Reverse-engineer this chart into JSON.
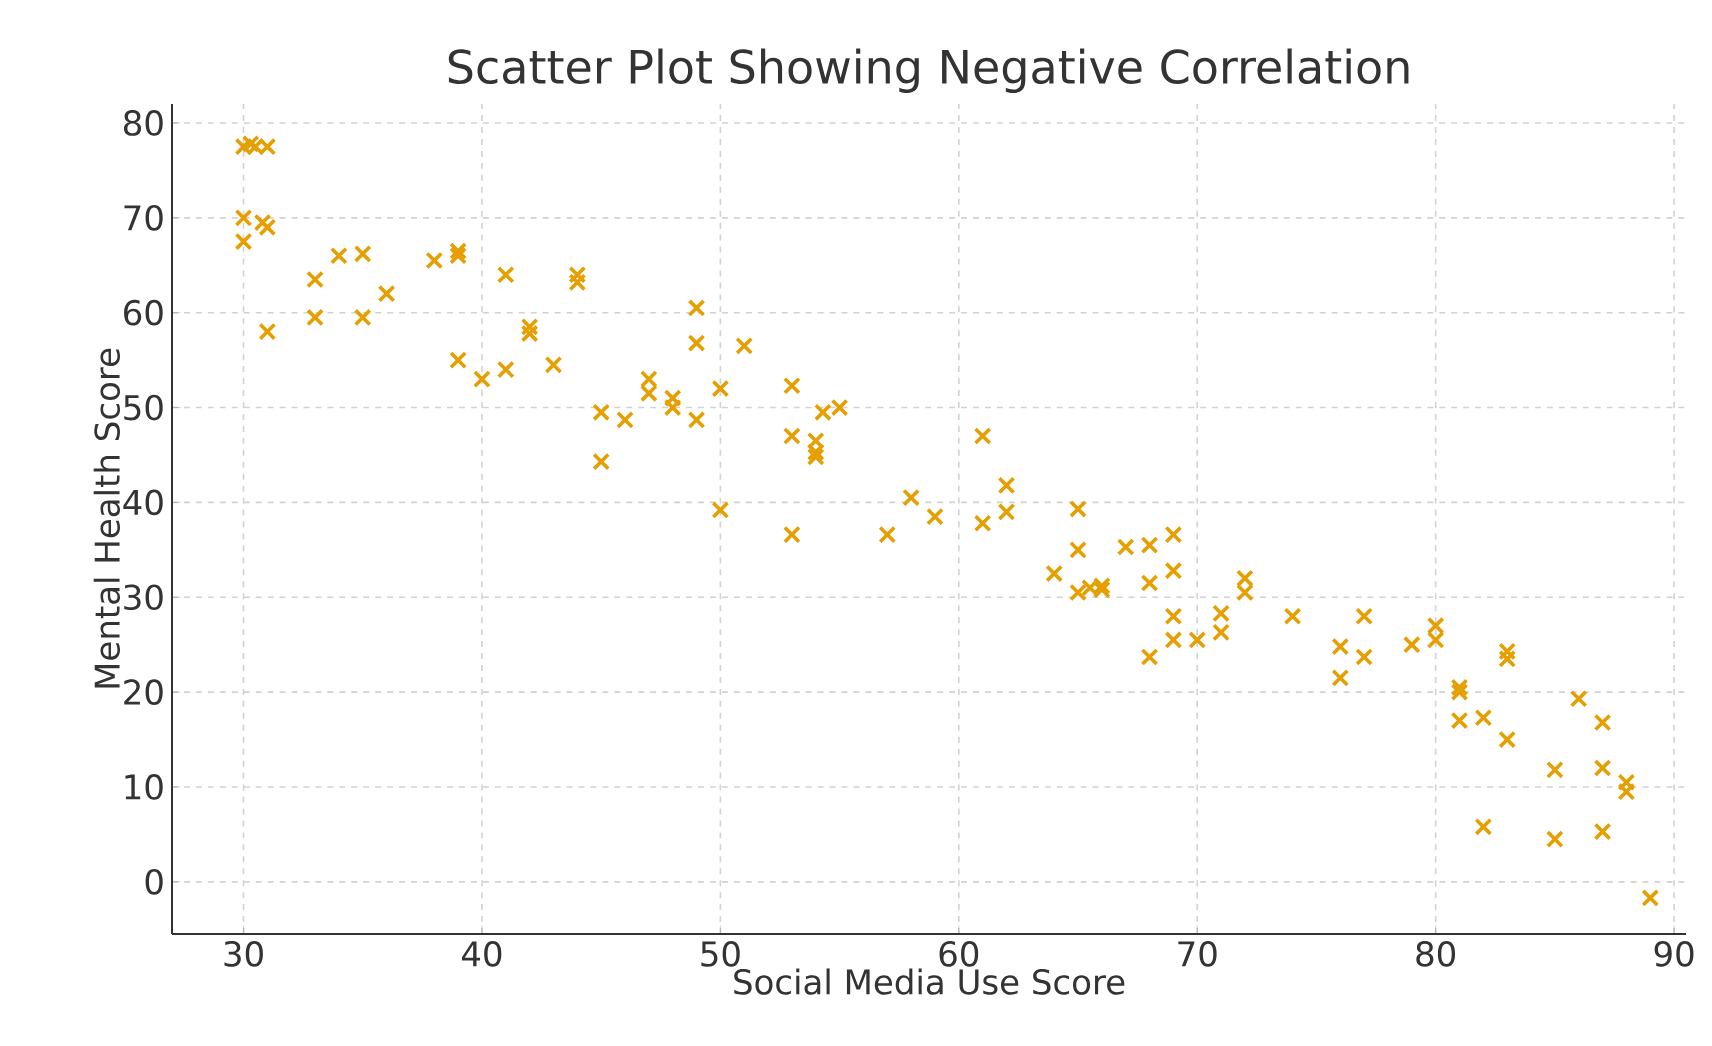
{
  "chart_data": {
    "type": "scatter",
    "title": "Scatter Plot Showing Negative Correlation",
    "xlabel": "Social Media Use Score",
    "ylabel": "Mental Health Score",
    "xlim": [
      27,
      90.5
    ],
    "ylim": [
      -5.5,
      82
    ],
    "xticks": [
      30,
      40,
      50,
      60,
      70,
      80,
      90
    ],
    "yticks": [
      0,
      10,
      20,
      30,
      40,
      50,
      60,
      70,
      80
    ],
    "grid": true,
    "marker": "cross",
    "series": [
      {
        "color": "#e69f00",
        "x": [
          30,
          30.3,
          30.5,
          31,
          30,
          30,
          30.8,
          31,
          31,
          33,
          33,
          34,
          35,
          35,
          36,
          38,
          39,
          39,
          39,
          40,
          41,
          41,
          42,
          42,
          43,
          44,
          44,
          45,
          45,
          46,
          47,
          47,
          48,
          48,
          49,
          49,
          49,
          50,
          50,
          51,
          53,
          53,
          53,
          54,
          54,
          54,
          54.3,
          55,
          57,
          58,
          59,
          61,
          61,
          62,
          62,
          64,
          65,
          65,
          65,
          65.5,
          66,
          66,
          67,
          68,
          68,
          68,
          69,
          69,
          69,
          69,
          70,
          71,
          71,
          72,
          72,
          74,
          76,
          76,
          77,
          77,
          79,
          80,
          80,
          81,
          81,
          81,
          82,
          82,
          83,
          83,
          83,
          85,
          85,
          86,
          87,
          87,
          87,
          88,
          88,
          89
        ],
        "values": [
          77.5,
          77.8,
          77.5,
          77.5,
          70,
          67.5,
          69.5,
          69,
          58,
          63.5,
          59.5,
          66,
          66.2,
          59.5,
          62,
          65.5,
          66.5,
          66,
          55,
          53,
          64,
          54,
          58.5,
          57.8,
          54.5,
          64,
          63.2,
          49.5,
          44.3,
          48.7,
          53,
          51.5,
          50,
          51,
          60.5,
          56.8,
          48.7,
          52,
          39.2,
          56.5,
          52.3,
          47,
          36.6,
          46.5,
          45.3,
          44.8,
          49.5,
          50,
          36.6,
          40.5,
          38.5,
          47,
          37.8,
          41.8,
          39,
          32.5,
          39.3,
          35,
          30.5,
          31,
          30.8,
          31.2,
          35.3,
          35.5,
          31.5,
          23.7,
          36.6,
          32.8,
          28,
          25.5,
          25.5,
          26.3,
          28.3,
          32,
          30.5,
          28,
          24.8,
          21.5,
          28,
          23.7,
          25,
          27,
          25.5,
          20.5,
          20,
          17,
          17.3,
          5.8,
          24.3,
          23.5,
          15,
          11.8,
          4.5,
          19.3,
          16.8,
          12,
          5.3,
          10.5,
          9.5,
          -1.7
        ]
      }
    ]
  }
}
